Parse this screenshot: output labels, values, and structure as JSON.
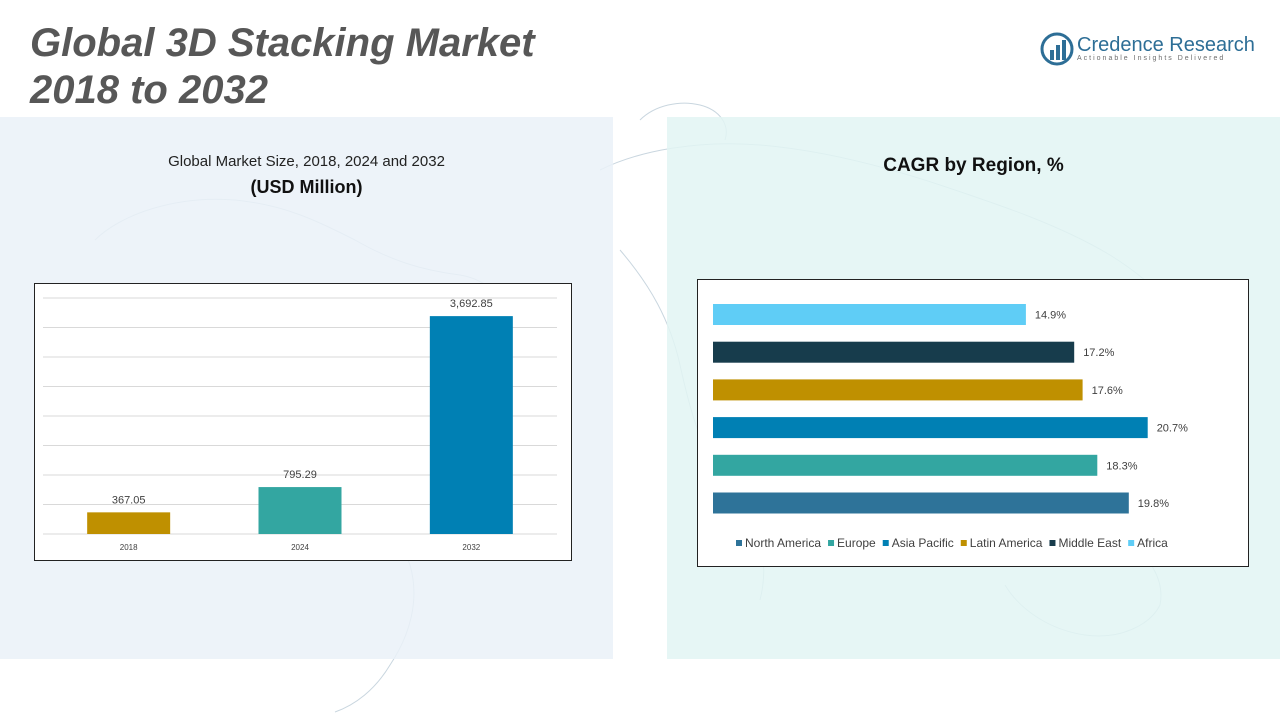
{
  "page_title_line1": "Global 3D Stacking Market",
  "page_title_line2": "2018 to 2032",
  "logo": {
    "name": "Credence Research",
    "tagline": "Actionable Insights Delivered",
    "icon": "credence-logo-icon",
    "color": "#2d6e96"
  },
  "left_panel": {
    "title": "Global Market Size, 2018, 2024 and 2032",
    "subtitle": "(USD Million)"
  },
  "right_panel": {
    "title": "CAGR by Region, %"
  },
  "chart_data": [
    {
      "type": "bar",
      "categories": [
        "2018",
        "2024",
        "2032"
      ],
      "values": [
        367.05,
        795.29,
        3692.85
      ],
      "value_labels": [
        "367.05",
        "795.29",
        "3,692.85"
      ],
      "colors": [
        "#bf9000",
        "#33a6a1",
        "#0080b4"
      ],
      "ylim": [
        0,
        4000
      ],
      "grid": true,
      "legend": "none"
    },
    {
      "type": "bar",
      "orientation": "horizontal",
      "categories": [
        "North America",
        "Europe",
        "Asia Pacific",
        "Latin America",
        "Middle East",
        "Africa"
      ],
      "values": [
        19.8,
        18.3,
        20.7,
        17.6,
        17.2,
        14.9
      ],
      "value_labels": [
        "19.8%",
        "18.3%",
        "20.7%",
        "17.6%",
        "17.2%",
        "14.9%"
      ],
      "colors": [
        "#2e7399",
        "#33a6a1",
        "#0080b4",
        "#bf9000",
        "#173c4c",
        "#5fcdf6"
      ],
      "xlim": [
        0,
        21
      ],
      "legend": "bottom"
    }
  ]
}
